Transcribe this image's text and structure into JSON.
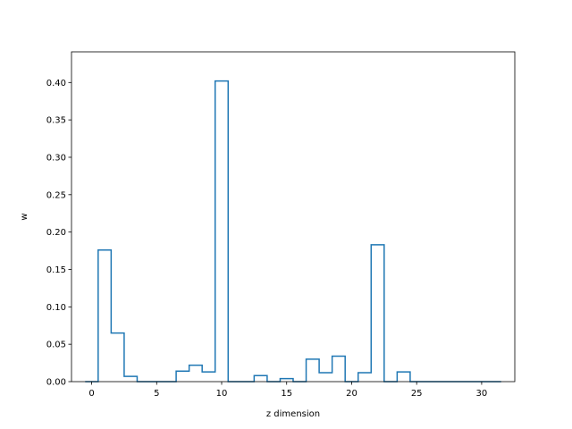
{
  "chart_data": {
    "type": "histogram-step",
    "title": "",
    "xlabel": "z dimension",
    "ylabel": "w",
    "xlim": [
      -1.55,
      32.55
    ],
    "ylim": [
      0,
      0.441
    ],
    "grid": false,
    "color": "#1f77b4",
    "x_ticks": [
      0,
      5,
      10,
      15,
      20,
      25,
      30
    ],
    "y_ticks": [
      0.0,
      0.05,
      0.1,
      0.15,
      0.2,
      0.25,
      0.3,
      0.35,
      0.4
    ],
    "bins": [
      {
        "center": 0,
        "value": 0.0
      },
      {
        "center": 1,
        "value": 0.176
      },
      {
        "center": 2,
        "value": 0.065
      },
      {
        "center": 3,
        "value": 0.007
      },
      {
        "center": 4,
        "value": 0.0
      },
      {
        "center": 5,
        "value": 0.0
      },
      {
        "center": 6,
        "value": 0.0
      },
      {
        "center": 7,
        "value": 0.014
      },
      {
        "center": 8,
        "value": 0.022
      },
      {
        "center": 9,
        "value": 0.013
      },
      {
        "center": 10,
        "value": 0.402
      },
      {
        "center": 11,
        "value": 0.0
      },
      {
        "center": 12,
        "value": 0.0
      },
      {
        "center": 13,
        "value": 0.008
      },
      {
        "center": 14,
        "value": 0.0
      },
      {
        "center": 15,
        "value": 0.004
      },
      {
        "center": 16,
        "value": 0.0
      },
      {
        "center": 17,
        "value": 0.03
      },
      {
        "center": 18,
        "value": 0.012
      },
      {
        "center": 19,
        "value": 0.034
      },
      {
        "center": 20,
        "value": 0.0
      },
      {
        "center": 21,
        "value": 0.012
      },
      {
        "center": 22,
        "value": 0.183
      },
      {
        "center": 23,
        "value": 0.0
      },
      {
        "center": 24,
        "value": 0.013
      },
      {
        "center": 25,
        "value": 0.0
      },
      {
        "center": 26,
        "value": 0.0
      },
      {
        "center": 27,
        "value": 0.0
      },
      {
        "center": 28,
        "value": 0.0
      },
      {
        "center": 29,
        "value": 0.0
      },
      {
        "center": 30,
        "value": 0.0
      },
      {
        "center": 31,
        "value": 0.0
      }
    ]
  }
}
